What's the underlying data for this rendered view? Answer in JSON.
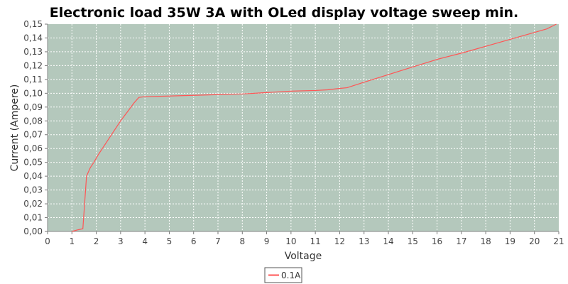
{
  "chart_data": {
    "type": "line",
    "title": "Electronic load 35W 3A with OLed display voltage sweep min.",
    "xlabel": "Voltage",
    "ylabel": "Current (Ampere)",
    "xlim": [
      0,
      21
    ],
    "ylim": [
      0,
      0.15
    ],
    "x_ticks": [
      "0",
      "1",
      "2",
      "3",
      "4",
      "5",
      "6",
      "7",
      "8",
      "9",
      "10",
      "11",
      "12",
      "13",
      "14",
      "15",
      "16",
      "17",
      "18",
      "19",
      "20",
      "21"
    ],
    "y_ticks": [
      "0,00",
      "0,01",
      "0,02",
      "0,03",
      "0,04",
      "0,05",
      "0,06",
      "0,07",
      "0,08",
      "0,09",
      "0,10",
      "0,11",
      "0,12",
      "0,13",
      "0,14",
      "0,15"
    ],
    "grid": true,
    "legend_position": "bottom-center",
    "colors": {
      "plot_background": "#b4c8bc",
      "grid": "#ffffff",
      "series": "#ff5555"
    },
    "series": [
      {
        "name": "0.1A",
        "x": [
          1.0,
          1.2,
          1.45,
          1.6,
          1.75,
          1.9,
          2.1,
          2.4,
          2.7,
          3.0,
          3.3,
          3.55,
          3.75,
          4.0,
          5.0,
          6.0,
          7.0,
          8.0,
          9.0,
          10.0,
          11.0,
          11.5,
          12.0,
          12.3,
          13.0,
          14.0,
          15.0,
          16.0,
          17.0,
          18.0,
          19.0,
          20.0,
          20.5,
          20.9
        ],
        "y": [
          0.0,
          0.001,
          0.002,
          0.04,
          0.046,
          0.05,
          0.056,
          0.064,
          0.072,
          0.08,
          0.087,
          0.093,
          0.097,
          0.0975,
          0.098,
          0.0985,
          0.099,
          0.0995,
          0.1005,
          0.1015,
          0.102,
          0.1025,
          0.1035,
          0.104,
          0.108,
          0.1135,
          0.119,
          0.1245,
          0.129,
          0.134,
          0.139,
          0.144,
          0.1465,
          0.15
        ]
      }
    ]
  }
}
